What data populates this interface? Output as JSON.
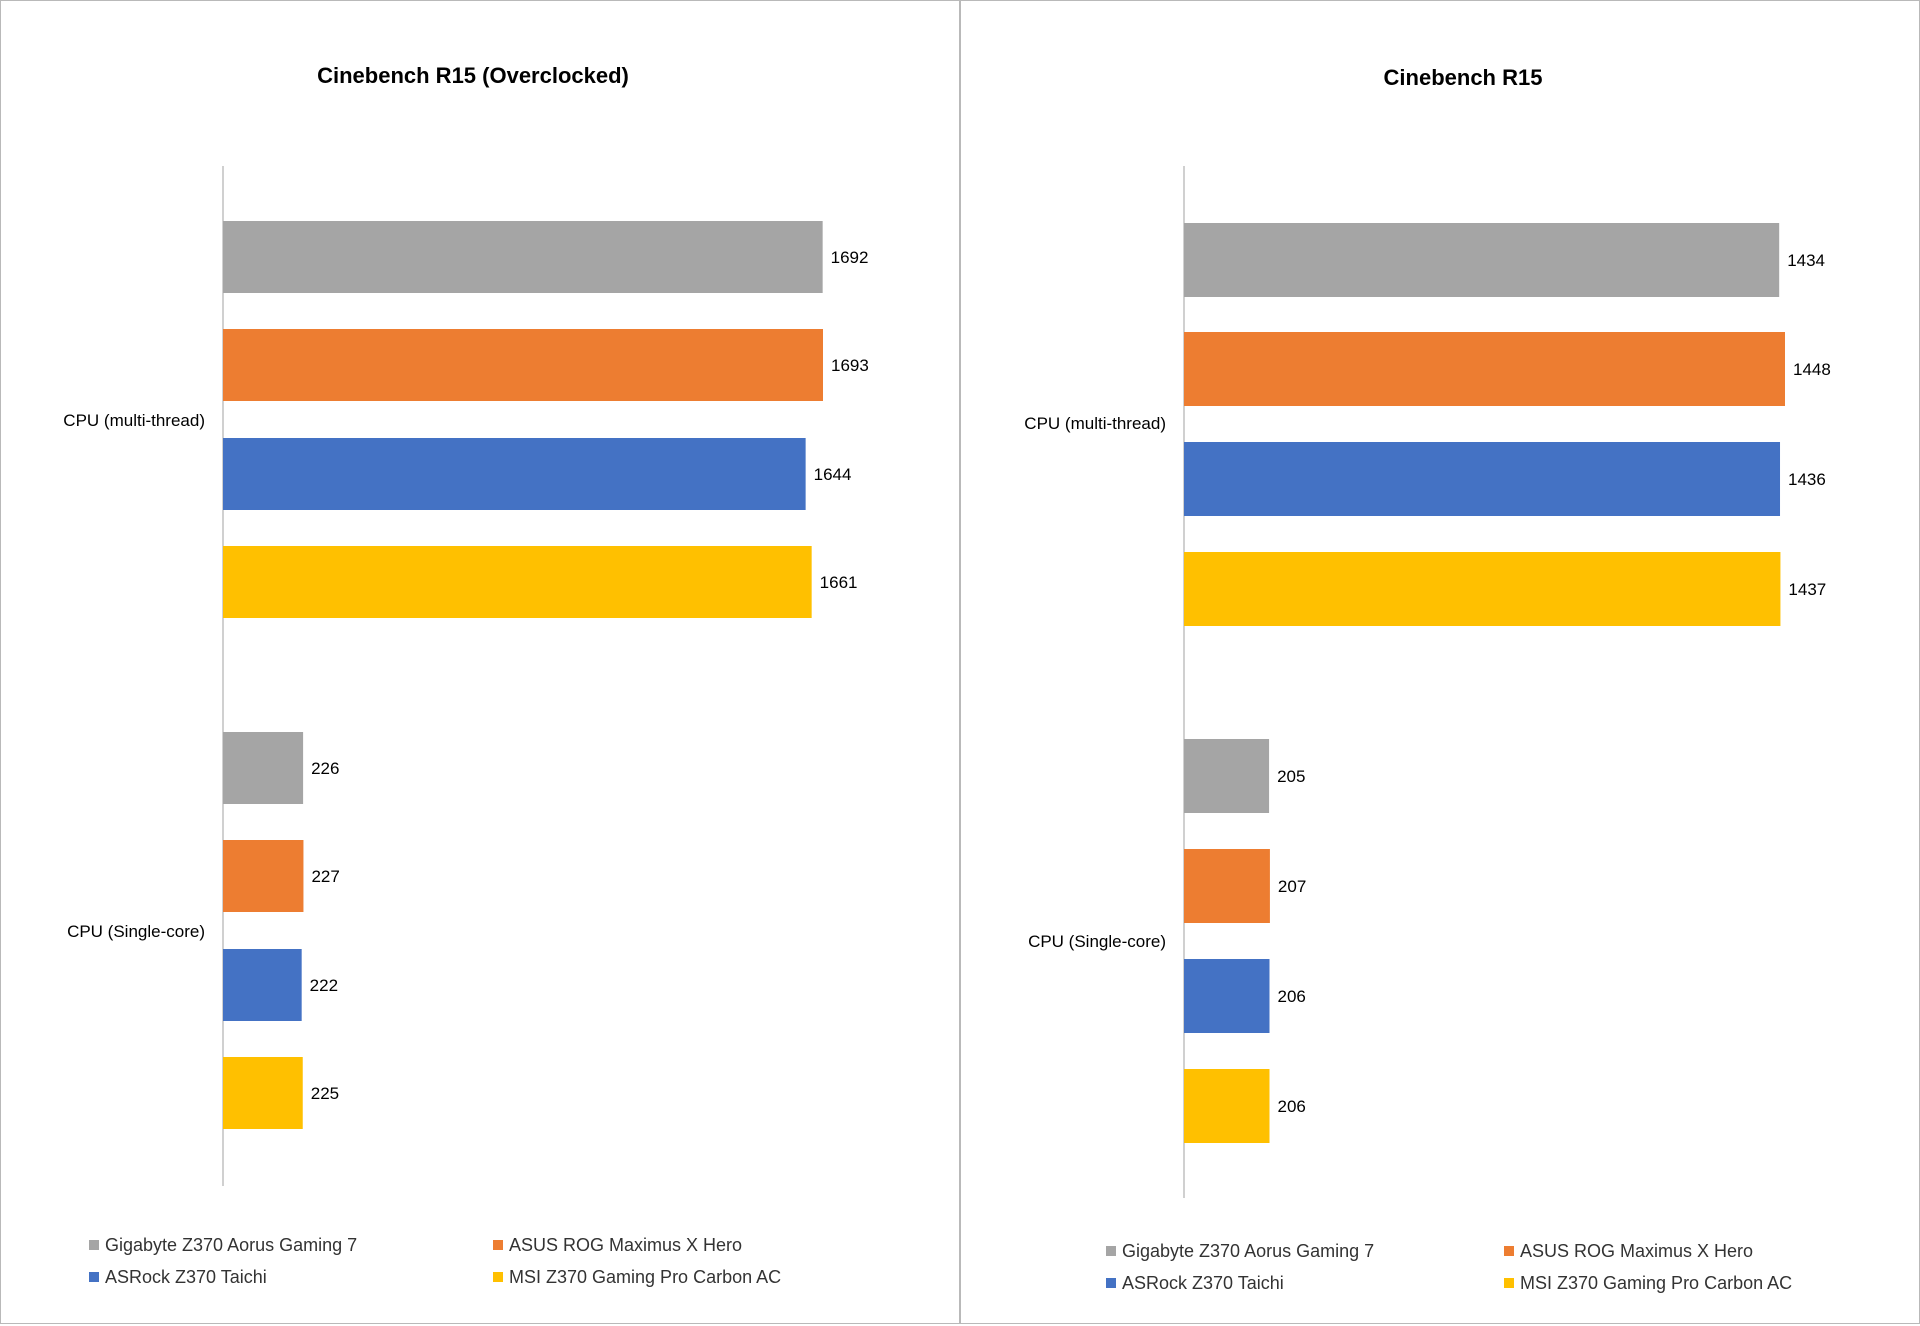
{
  "chart_data": [
    {
      "type": "bar",
      "orientation": "horizontal",
      "title": "Cinebench R15 (Overclocked)",
      "categories": [
        "CPU (multi-thread)",
        "CPU (Single-core)"
      ],
      "series": [
        {
          "name": "Gigabyte Z370 Aorus Gaming 7",
          "color": "#a5a5a5",
          "values": [
            1692,
            226
          ]
        },
        {
          "name": "ASUS ROG Maximus X Hero",
          "color": "#ed7d31",
          "values": [
            1693,
            227
          ]
        },
        {
          "name": "ASRock Z370 Taichi",
          "color": "#4472c4",
          "values": [
            1644,
            222
          ]
        },
        {
          "name": "MSI Z370 Gaming Pro Carbon AC",
          "color": "#ffc000",
          "values": [
            1661,
            225
          ]
        }
      ],
      "xlim": [
        0,
        1693
      ],
      "legend_position": "bottom"
    },
    {
      "type": "bar",
      "orientation": "horizontal",
      "title": "Cinebench R15",
      "categories": [
        "CPU (multi-thread)",
        "CPU (Single-core)"
      ],
      "series": [
        {
          "name": "Gigabyte Z370 Aorus Gaming 7",
          "color": "#a5a5a5",
          "values": [
            1434,
            205
          ]
        },
        {
          "name": "ASUS ROG Maximus X Hero",
          "color": "#ed7d31",
          "values": [
            1448,
            207
          ]
        },
        {
          "name": "ASRock Z370 Taichi",
          "color": "#4472c4",
          "values": [
            1436,
            206
          ]
        },
        {
          "name": "MSI Z370 Gaming Pro Carbon AC",
          "color": "#ffc000",
          "values": [
            1437,
            206
          ]
        }
      ],
      "xlim": [
        0,
        1448
      ],
      "legend_position": "bottom"
    }
  ]
}
